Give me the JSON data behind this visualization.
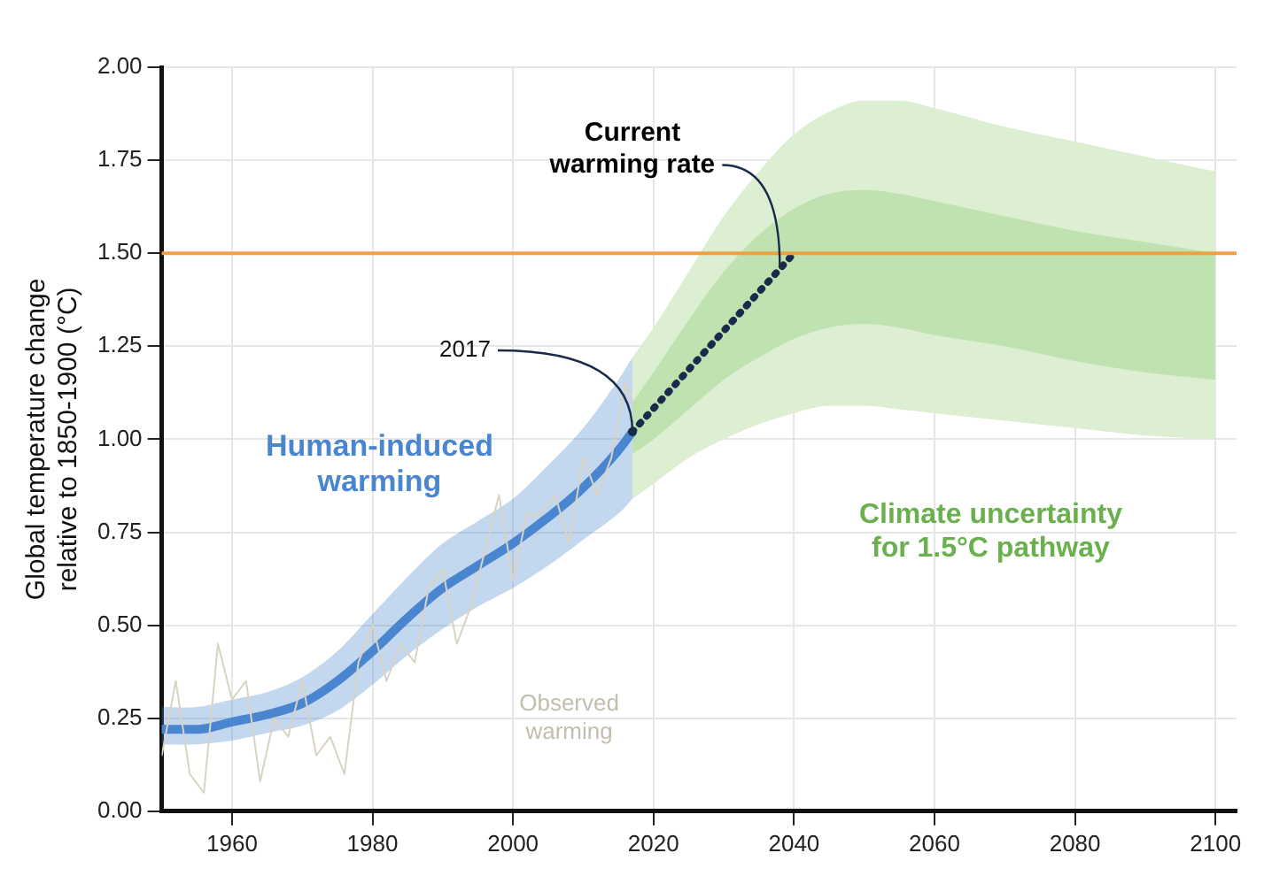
{
  "chart_data": {
    "type": "line",
    "ylabel": "Global temperature change relative to 1850-1900 (°C)",
    "xlim": [
      1950,
      2103
    ],
    "xticks": [
      1960,
      1980,
      2000,
      2020,
      2040,
      2060,
      2080,
      2100
    ],
    "ylim": [
      0,
      2
    ],
    "yticks": [
      {
        "value": 0,
        "label": "0.00"
      },
      {
        "value": 0.25,
        "label": "0.25"
      },
      {
        "value": 0.5,
        "label": "0.50"
      },
      {
        "value": 0.75,
        "label": "0.75"
      },
      {
        "value": 1,
        "label": "1.00"
      },
      {
        "value": 1.25,
        "label": "1.25"
      },
      {
        "value": 1.5,
        "label": "1.50"
      },
      {
        "value": 1.75,
        "label": "1.75"
      },
      {
        "value": 2,
        "label": "2.00"
      }
    ],
    "grid": true,
    "legend": false,
    "series": [
      {
        "name": "Observed warming",
        "type": "line",
        "color": "#d8d3c3",
        "x": [
          1950,
          1952,
          1954,
          1956,
          1958,
          1960,
          1962,
          1964,
          1966,
          1968,
          1970,
          1972,
          1974,
          1976,
          1978,
          1980,
          1982,
          1984,
          1986,
          1988,
          1990,
          1992,
          1994,
          1996,
          1998,
          2000,
          2002,
          2004,
          2006,
          2008,
          2010,
          2012,
          2014,
          2016,
          2017
        ],
        "values": [
          0.15,
          0.35,
          0.1,
          0.05,
          0.45,
          0.3,
          0.35,
          0.08,
          0.25,
          0.2,
          0.35,
          0.15,
          0.2,
          0.1,
          0.4,
          0.5,
          0.35,
          0.45,
          0.4,
          0.6,
          0.65,
          0.45,
          0.55,
          0.7,
          0.85,
          0.62,
          0.8,
          0.8,
          0.85,
          0.72,
          0.95,
          0.85,
          0.95,
          1.15,
          1.1
        ]
      },
      {
        "name": "Human-induced warming",
        "type": "line",
        "color": "#4a86d0",
        "x": [
          1950,
          1955,
          1960,
          1965,
          1970,
          1975,
          1980,
          1985,
          1990,
          1995,
          2000,
          2005,
          2010,
          2015,
          2017
        ],
        "values": [
          0.22,
          0.22,
          0.24,
          0.26,
          0.29,
          0.35,
          0.43,
          0.52,
          0.6,
          0.66,
          0.72,
          0.79,
          0.87,
          0.97,
          1.02
        ],
        "lower": [
          0.18,
          0.18,
          0.19,
          0.21,
          0.23,
          0.27,
          0.34,
          0.42,
          0.49,
          0.55,
          0.6,
          0.66,
          0.73,
          0.8,
          0.84
        ],
        "upper": [
          0.28,
          0.28,
          0.3,
          0.32,
          0.36,
          0.43,
          0.53,
          0.63,
          0.72,
          0.78,
          0.84,
          0.93,
          1.03,
          1.16,
          1.22
        ]
      },
      {
        "name": "Current warming rate",
        "type": "line",
        "color": "#1b2a4a",
        "line_style": "dotted",
        "x": [
          2017,
          2040
        ],
        "values": [
          1.02,
          1.5
        ]
      },
      {
        "type": "area",
        "color": "#dcefd2",
        "x": [
          2017,
          2020,
          2025,
          2030,
          2035,
          2040,
          2045,
          2050,
          2055,
          2060,
          2070,
          2080,
          2090,
          2100
        ],
        "values": [
          null,
          null,
          null,
          null,
          null,
          null,
          null,
          null,
          null,
          null,
          null,
          null,
          null,
          null
        ],
        "upper": [
          1.22,
          1.3,
          1.45,
          1.6,
          1.72,
          1.82,
          1.88,
          1.91,
          1.91,
          1.89,
          1.84,
          1.8,
          1.76,
          1.72
        ],
        "lower": [
          0.84,
          0.88,
          0.95,
          1.0,
          1.04,
          1.07,
          1.09,
          1.09,
          1.08,
          1.07,
          1.05,
          1.03,
          1.01,
          1.0
        ]
      },
      {
        "type": "area",
        "color": "#bfe2b0",
        "x": [
          2017,
          2020,
          2025,
          2030,
          2035,
          2040,
          2045,
          2050,
          2055,
          2060,
          2070,
          2080,
          2090,
          2100
        ],
        "values": [
          null,
          null,
          null,
          null,
          null,
          null,
          null,
          null,
          null,
          null,
          null,
          null,
          null,
          null
        ],
        "upper": [
          1.1,
          1.18,
          1.32,
          1.45,
          1.55,
          1.62,
          1.66,
          1.67,
          1.66,
          1.64,
          1.6,
          1.56,
          1.53,
          1.5
        ],
        "lower": [
          0.96,
          1.0,
          1.08,
          1.16,
          1.22,
          1.27,
          1.3,
          1.31,
          1.3,
          1.28,
          1.25,
          1.21,
          1.18,
          1.16
        ]
      }
    ],
    "ref_lines": [
      {
        "axis": "y",
        "value": 1.5,
        "color": "#f0a040"
      }
    ],
    "annotations": [
      {
        "text": "2017",
        "x": 2017,
        "y": 1.02
      },
      "Climate uncertainty for 1.5°C pathway"
    ]
  }
}
